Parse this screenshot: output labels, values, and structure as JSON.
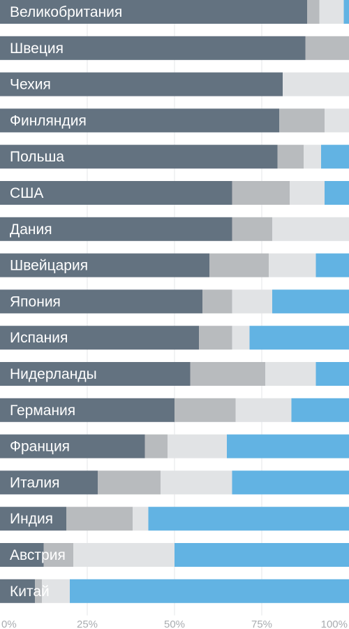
{
  "chart_data": {
    "type": "bar",
    "orientation": "horizontal",
    "stacked": true,
    "percent_stacked": true,
    "categories": [
      "Великобритания",
      "Швеция",
      "Чехия",
      "Финляндия",
      "Польша",
      "США",
      "Дания",
      "Швейцария",
      "Япония",
      "Испания",
      "Нидерланды",
      "Германия",
      "Франция",
      "Италия",
      "Индия",
      "Австрия",
      "Китай"
    ],
    "series": [
      {
        "values": [
          88,
          87.5,
          81,
          80,
          79.5,
          66.5,
          66.5,
          60,
          58,
          57,
          54.5,
          50,
          41.5,
          28,
          19,
          12.5,
          10
        ],
        "color": "#637280"
      },
      {
        "values": [
          3.5,
          12.5,
          0,
          13,
          7.5,
          16.5,
          11.5,
          17,
          8.5,
          9.5,
          21.5,
          17.5,
          6.5,
          18,
          19,
          8.5,
          2
        ],
        "color": "#b8bbbe"
      },
      {
        "values": [
          7,
          0,
          19,
          7,
          5,
          10,
          22,
          13.5,
          11.5,
          5,
          14.5,
          16,
          17,
          20.5,
          4.5,
          29,
          8
        ],
        "color": "#e1e3e5"
      },
      {
        "values": [
          1.5,
          0,
          0,
          0,
          8,
          7,
          0,
          9.5,
          22,
          28.5,
          9.5,
          16.5,
          35,
          33.5,
          57.5,
          50,
          80
        ],
        "color": "#62b3e3"
      }
    ],
    "xlim": [
      0,
      100
    ],
    "x_ticks": [
      "0%",
      "25%",
      "50%",
      "75%",
      "100%"
    ],
    "grid": true,
    "legend": "none"
  }
}
